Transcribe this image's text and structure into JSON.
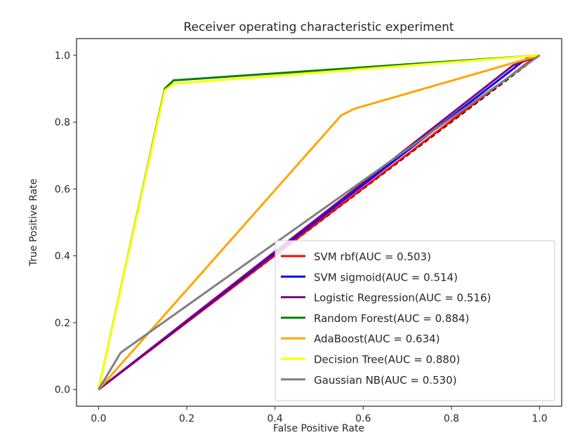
{
  "chart_data": {
    "type": "line",
    "title": "Receiver operating characteristic experiment",
    "xlabel": "False Positive Rate",
    "ylabel": "True Positive Rate",
    "xlim": [
      -0.05,
      1.05
    ],
    "ylim": [
      -0.05,
      1.05
    ],
    "xticks": [
      "0.0",
      "0.2",
      "0.4",
      "0.6",
      "0.8",
      "1.0"
    ],
    "yticks": [
      "0.0",
      "0.2",
      "0.4",
      "0.6",
      "0.8",
      "1.0"
    ],
    "legend_position": "lower-right",
    "diagonal": {
      "x": [
        0,
        1
      ],
      "y": [
        0,
        1
      ],
      "color": "#000000",
      "style": "dashed"
    },
    "series": [
      {
        "name": "SVM rbf(AUC = 0.503)",
        "color": "#ff0000",
        "x": [
          0,
          0.99,
          1
        ],
        "y": [
          0,
          0.995,
          1
        ]
      },
      {
        "name": "SVM sigmoid(AUC = 0.514)",
        "color": "#0000ff",
        "x": [
          0,
          0.97,
          1
        ],
        "y": [
          0,
          0.99,
          1
        ]
      },
      {
        "name": "Logistic Regression(AUC = 0.516)",
        "color": "#800080",
        "x": [
          0,
          0.94,
          1
        ],
        "y": [
          0,
          0.97,
          1
        ]
      },
      {
        "name": "Random Forest(AUC = 0.884)",
        "color": "#008000",
        "x": [
          0,
          0.15,
          0.17,
          1
        ],
        "y": [
          0,
          0.9,
          0.925,
          1
        ]
      },
      {
        "name": "AdaBoost(AUC = 0.634)",
        "color": "#ffa500",
        "x": [
          0,
          0.55,
          0.58,
          1
        ],
        "y": [
          0,
          0.82,
          0.84,
          1
        ]
      },
      {
        "name": "Decision Tree(AUC = 0.880)",
        "color": "#ffff00",
        "x": [
          0,
          0.15,
          0.17,
          1
        ],
        "y": [
          0,
          0.895,
          0.915,
          1
        ]
      },
      {
        "name": "Gaussian NB(AUC = 0.530)",
        "color": "#808080",
        "x": [
          0,
          0.05,
          1
        ],
        "y": [
          0,
          0.11,
          1
        ]
      }
    ]
  }
}
